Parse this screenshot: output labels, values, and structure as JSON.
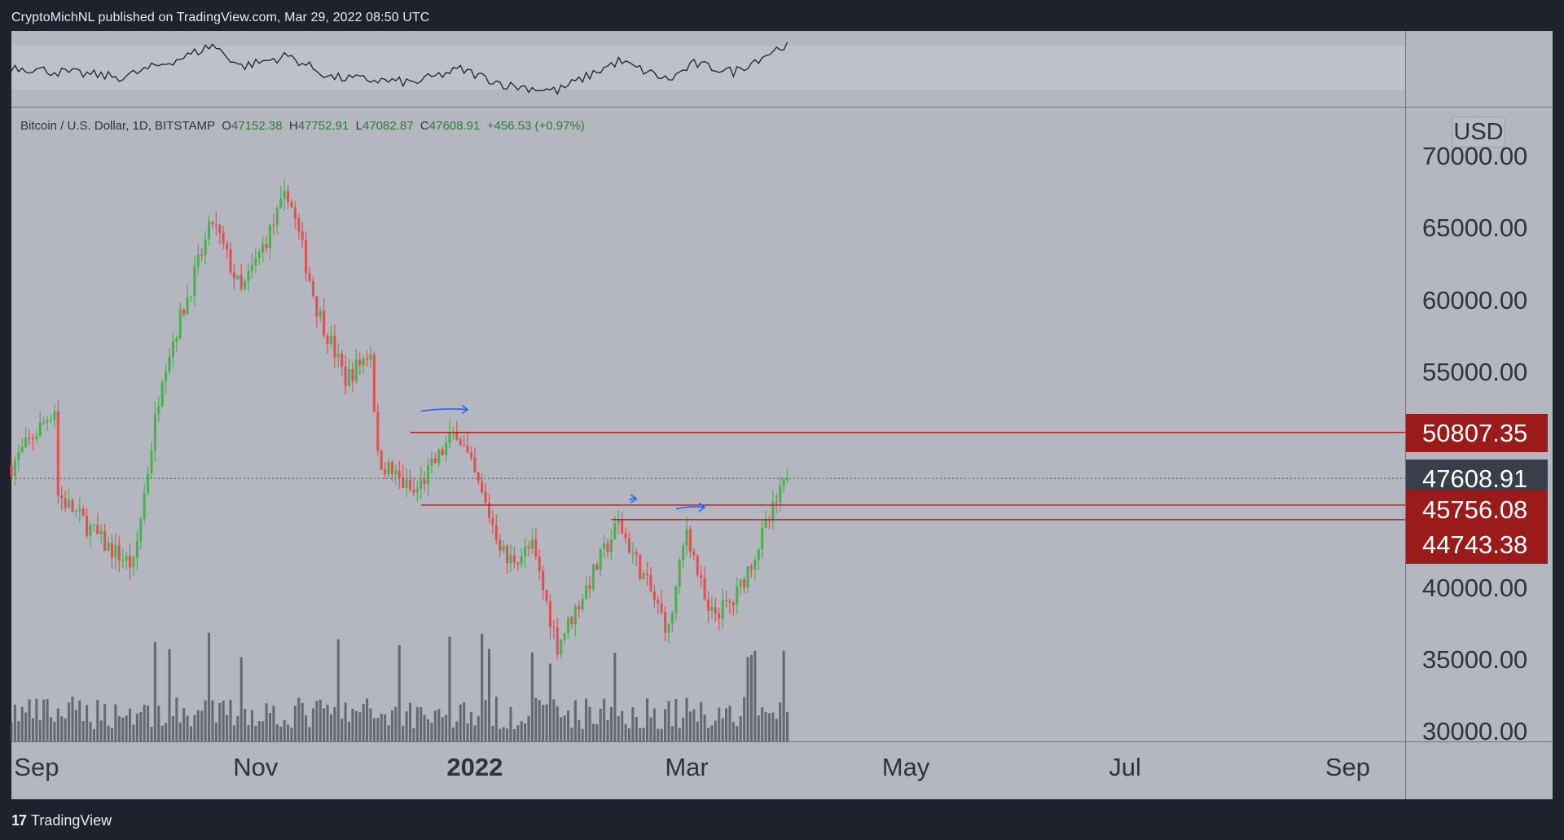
{
  "header": {
    "publisher": "CryptoMichNL published on TradingView.com, Mar 29, 2022 08:50 UTC"
  },
  "legend": {
    "symbol": "Bitcoin / U.S. Dollar, 1D, BITSTAMP",
    "open_label": "O",
    "open": "47152.38",
    "high_label": "H",
    "high": "47752.91",
    "low_label": "L",
    "low": "47082.87",
    "close_label": "C",
    "close": "47608.91",
    "change": "+456.53 (+0.97%)"
  },
  "currency": "USD",
  "footer": {
    "logo_mark": "17",
    "brand": "TradingView"
  },
  "colors": {
    "background": "#b4b7c0",
    "frame": "#1e222d",
    "up_candle": "#4caf50",
    "down_candle": "#e05252",
    "level_line": "#b71c1c",
    "level_label": "#9b1b1b",
    "current_label": "#3a3e4a",
    "arrow": "#2962ff",
    "volume": "#4b4f5a"
  },
  "chart_data": {
    "type": "candlestick",
    "title": "Bitcoin / U.S. Dollar, 1D, BITSTAMP",
    "ylabel": "USD",
    "ylim": [
      30000,
      72000
    ],
    "y_ticks": [
      "70000.00",
      "65000.00",
      "60000.00",
      "55000.00",
      "40000.00",
      "35000.00",
      "30000.00"
    ],
    "y_tick_values": [
      70000,
      65000,
      60000,
      55000,
      40000,
      35000,
      30000
    ],
    "x_ticks": [
      "Sep",
      "Nov",
      "2022",
      "Mar",
      "May",
      "Jul",
      "Sep"
    ],
    "x_tick_dates": [
      "2021-09-01",
      "2021-11-01",
      "2022-01-01",
      "2022-03-01",
      "2022-05-01",
      "2022-07-01",
      "2022-09-01"
    ],
    "x_range": [
      "2021-08-25",
      "2022-09-17"
    ],
    "data_end": "2022-03-29",
    "price_path": [
      [
        "2021-08-25",
        48500
      ],
      [
        "2021-09-06",
        52500
      ],
      [
        "2021-09-07",
        46500
      ],
      [
        "2021-09-20",
        43000
      ],
      [
        "2021-09-28",
        41500
      ],
      [
        "2021-10-06",
        55000
      ],
      [
        "2021-10-20",
        65500
      ],
      [
        "2021-10-28",
        60500
      ],
      [
        "2021-11-10",
        67500
      ],
      [
        "2021-11-18",
        59500
      ],
      [
        "2021-11-26",
        54500
      ],
      [
        "2021-12-03",
        56500
      ],
      [
        "2021-12-05",
        49000
      ],
      [
        "2021-12-15",
        46500
      ],
      [
        "2021-12-27",
        51000
      ],
      [
        "2022-01-10",
        41800
      ],
      [
        "2022-01-17",
        42800
      ],
      [
        "2022-01-24",
        36000
      ],
      [
        "2022-02-10",
        44500
      ],
      [
        "2022-02-24",
        37000
      ],
      [
        "2022-03-01",
        44200
      ],
      [
        "2022-03-07",
        38000
      ],
      [
        "2022-03-14",
        39000
      ],
      [
        "2022-03-29",
        47600
      ]
    ],
    "levels": [
      {
        "price": 50807.35,
        "label": "50807.35",
        "from": "2021-12-14"
      },
      {
        "price": 45756.08,
        "label": "45756.08",
        "from": "2021-12-17"
      },
      {
        "price": 44743.38,
        "label": "44743.38",
        "from": "2022-02-08"
      }
    ],
    "current_price": {
      "price": 47608.91,
      "label": "47608.91"
    },
    "annotations": [
      {
        "type": "arrow",
        "from": "2021-12-17",
        "to": "2021-12-30",
        "price": 52400
      },
      {
        "type": "arrow",
        "from": "2022-02-13",
        "to": "2022-02-15",
        "price": 46200
      },
      {
        "type": "arrow",
        "from": "2022-02-26",
        "to": "2022-03-06",
        "price": 45600
      }
    ],
    "oscillator": {
      "path": [
        [
          "2021-08-25",
          0.55
        ],
        [
          "2021-09-07",
          0.45
        ],
        [
          "2021-09-25",
          0.35
        ],
        [
          "2021-10-13",
          0.75
        ],
        [
          "2021-10-20",
          0.95
        ],
        [
          "2021-10-28",
          0.55
        ],
        [
          "2021-11-10",
          0.75
        ],
        [
          "2021-11-22",
          0.35
        ],
        [
          "2021-12-15",
          0.25
        ],
        [
          "2021-12-28",
          0.5
        ],
        [
          "2022-01-10",
          0.2
        ],
        [
          "2022-01-24",
          0.1
        ],
        [
          "2022-02-10",
          0.65
        ],
        [
          "2022-02-24",
          0.3
        ],
        [
          "2022-03-03",
          0.6
        ],
        [
          "2022-03-14",
          0.45
        ],
        [
          "2022-03-29",
          0.98
        ]
      ]
    }
  }
}
